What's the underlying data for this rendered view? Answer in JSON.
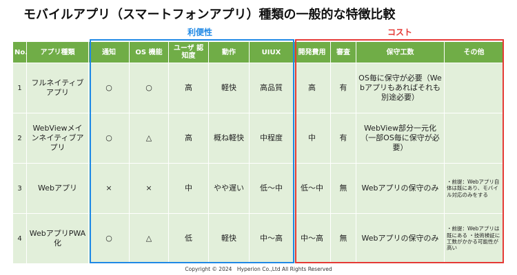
{
  "title": "モバイルアプリ（スマートフォンアプリ）種類の一般的な特徴比較",
  "groups": {
    "convenience": "利便性",
    "cost": "コスト"
  },
  "headers": [
    "No.",
    "アプリ種類",
    "通知",
    "OS 機能",
    "ユーザ 認知度",
    "動作",
    "UIUX",
    "開発費用",
    "審査",
    "保守工数",
    "その他"
  ],
  "rows": [
    [
      "1",
      "フルネイティブアプリ",
      "○",
      "○",
      "高",
      "軽快",
      "高品質",
      "高",
      "有",
      "OS毎に保守が必要（Webアプリもあればそれも別途必要）",
      ""
    ],
    [
      "2",
      "WebViewメインネイティブアプリ",
      "○",
      "△",
      "高",
      "概ね軽快",
      "中程度",
      "中",
      "有",
      "WebView部分一元化（一部OS毎に保守が必要）",
      ""
    ],
    [
      "3",
      "Webアプリ",
      "×",
      "×",
      "中",
      "やや遅い",
      "低～中",
      "低～中",
      "無",
      "Webアプリの保守のみ",
      "・前提：Webアプリ自体は既にあり、モバイル対応のみをする"
    ],
    [
      "4",
      "WebアプリPWA化",
      "○",
      "△",
      "低",
      "軽快",
      "中～高",
      "中～高",
      "無",
      "Webアプリの保守のみ",
      "・前提：Webアプリは既にある ・技術検証に工数がかかる可能性が高い"
    ]
  ],
  "copyright": "Copyright © 2024　Hyperion Co.,Ltd All Rights Reserved",
  "colors": {
    "header_green": "#70ad47",
    "cell_green": "#e2efda",
    "convenience_blue": "#1e88e5",
    "cost_red": "#e53935"
  }
}
